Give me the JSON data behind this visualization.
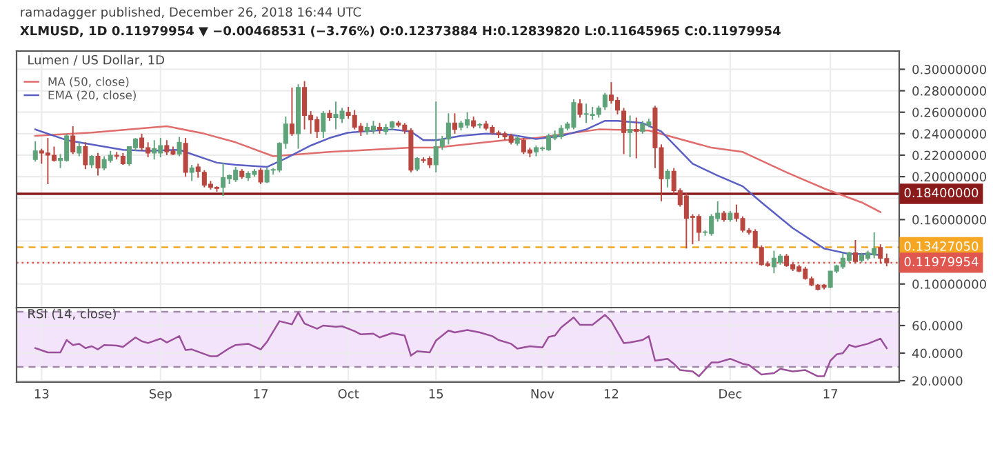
{
  "chart_data": [
    {
      "type": "candlestick",
      "title": "XLMUSD, 1D 0.11979954 ▼ −0.00468531 (−3.76%) O:0.12373884 H:0.12839820 L:0.11645965 C:0.11979954",
      "subtitle": "ramadagger published, December 26, 2018 16:44 UTC",
      "annotations": [
        "Lumen / US Dollar, 1D"
      ],
      "x": [
        "2018-08-12",
        "2018-08-13",
        "2018-08-14",
        "2018-08-15",
        "2018-08-16",
        "2018-08-17",
        "2018-08-18",
        "2018-08-19",
        "2018-08-20",
        "2018-08-21",
        "2018-08-22",
        "2018-08-23",
        "2018-08-24",
        "2018-08-25",
        "2018-08-26",
        "2018-08-27",
        "2018-08-28",
        "2018-08-29",
        "2018-08-30",
        "2018-08-31",
        "2018-09-01",
        "2018-09-02",
        "2018-09-03",
        "2018-09-04",
        "2018-09-05",
        "2018-09-06",
        "2018-09-07",
        "2018-09-08",
        "2018-09-09",
        "2018-09-10",
        "2018-09-11",
        "2018-09-12",
        "2018-09-13",
        "2018-09-14",
        "2018-09-15",
        "2018-09-16",
        "2018-09-17",
        "2018-09-18",
        "2018-09-19",
        "2018-09-20",
        "2018-09-21",
        "2018-09-22",
        "2018-09-23",
        "2018-09-24",
        "2018-09-25",
        "2018-09-26",
        "2018-09-27",
        "2018-09-28",
        "2018-09-29",
        "2018-09-30",
        "2018-10-01",
        "2018-10-02",
        "2018-10-03",
        "2018-10-04",
        "2018-10-05",
        "2018-10-06",
        "2018-10-07",
        "2018-10-08",
        "2018-10-09",
        "2018-10-10",
        "2018-10-11",
        "2018-10-12",
        "2018-10-13",
        "2018-10-14",
        "2018-10-15",
        "2018-10-16",
        "2018-10-17",
        "2018-10-18",
        "2018-10-19",
        "2018-10-20",
        "2018-10-21",
        "2018-10-22",
        "2018-10-23",
        "2018-10-24",
        "2018-10-25",
        "2018-10-26",
        "2018-10-27",
        "2018-10-28",
        "2018-10-29",
        "2018-10-30",
        "2018-10-31",
        "2018-11-01",
        "2018-11-02",
        "2018-11-03",
        "2018-11-04",
        "2018-11-05",
        "2018-11-06",
        "2018-11-07",
        "2018-11-08",
        "2018-11-09",
        "2018-11-10",
        "2018-11-11",
        "2018-11-12",
        "2018-11-13",
        "2018-11-14",
        "2018-11-15",
        "2018-11-16",
        "2018-11-17",
        "2018-11-18",
        "2018-11-19",
        "2018-11-20",
        "2018-11-21",
        "2018-11-22",
        "2018-11-23",
        "2018-11-24",
        "2018-11-25",
        "2018-11-26",
        "2018-11-27",
        "2018-11-28",
        "2018-11-29",
        "2018-11-30",
        "2018-12-01",
        "2018-12-02",
        "2018-12-03",
        "2018-12-04",
        "2018-12-05",
        "2018-12-06",
        "2018-12-07",
        "2018-12-08",
        "2018-12-09",
        "2018-12-10",
        "2018-12-11",
        "2018-12-12",
        "2018-12-13",
        "2018-12-14",
        "2018-12-15",
        "2018-12-16",
        "2018-12-17",
        "2018-12-18",
        "2018-12-19",
        "2018-12-20",
        "2018-12-21",
        "2018-12-22",
        "2018-12-23",
        "2018-12-24",
        "2018-12-25",
        "2018-12-26"
      ],
      "ohlc": [
        [
          0.216,
          0.233,
          0.214,
          0.224
        ],
        [
          0.224,
          0.226,
          0.212,
          0.222
        ],
        [
          0.222,
          0.236,
          0.193,
          0.22
        ],
        [
          0.22,
          0.228,
          0.214,
          0.215
        ],
        [
          0.215,
          0.221,
          0.208,
          0.217
        ],
        [
          0.215,
          0.24,
          0.214,
          0.238
        ],
        [
          0.238,
          0.247,
          0.221,
          0.223
        ],
        [
          0.222,
          0.232,
          0.219,
          0.228
        ],
        [
          0.228,
          0.232,
          0.207,
          0.211
        ],
        [
          0.211,
          0.22,
          0.208,
          0.219
        ],
        [
          0.219,
          0.222,
          0.201,
          0.208
        ],
        [
          0.208,
          0.219,
          0.206,
          0.216
        ],
        [
          0.215,
          0.224,
          0.213,
          0.22
        ],
        [
          0.22,
          0.223,
          0.216,
          0.219
        ],
        [
          0.219,
          0.222,
          0.211,
          0.212
        ],
        [
          0.212,
          0.228,
          0.21,
          0.228
        ],
        [
          0.227,
          0.236,
          0.224,
          0.235
        ],
        [
          0.236,
          0.24,
          0.224,
          0.227
        ],
        [
          0.227,
          0.232,
          0.218,
          0.222
        ],
        [
          0.222,
          0.234,
          0.216,
          0.226
        ],
        [
          0.222,
          0.236,
          0.218,
          0.229
        ],
        [
          0.229,
          0.234,
          0.22,
          0.223
        ],
        [
          0.224,
          0.228,
          0.22,
          0.221
        ],
        [
          0.221,
          0.237,
          0.219,
          0.232
        ],
        [
          0.231,
          0.236,
          0.2,
          0.204
        ],
        [
          0.204,
          0.211,
          0.196,
          0.208
        ],
        [
          0.209,
          0.212,
          0.199,
          0.205
        ],
        [
          0.204,
          0.206,
          0.19,
          0.192
        ],
        [
          0.193,
          0.196,
          0.188,
          0.19
        ],
        [
          0.19,
          0.191,
          0.186,
          0.189
        ],
        [
          0.19,
          0.213,
          0.182,
          0.199
        ],
        [
          0.198,
          0.202,
          0.193,
          0.201
        ],
        [
          0.197,
          0.209,
          0.195,
          0.206
        ],
        [
          0.205,
          0.207,
          0.198,
          0.2
        ],
        [
          0.199,
          0.205,
          0.196,
          0.203
        ],
        [
          0.202,
          0.207,
          0.2,
          0.205
        ],
        [
          0.206,
          0.208,
          0.193,
          0.195
        ],
        [
          0.195,
          0.208,
          0.194,
          0.206
        ],
        [
          0.206,
          0.208,
          0.202,
          0.206
        ],
        [
          0.206,
          0.232,
          0.204,
          0.231
        ],
        [
          0.231,
          0.256,
          0.226,
          0.249
        ],
        [
          0.249,
          0.283,
          0.238,
          0.24
        ],
        [
          0.24,
          0.286,
          0.226,
          0.283
        ],
        [
          0.283,
          0.289,
          0.244,
          0.257
        ],
        [
          0.257,
          0.261,
          0.24,
          0.253
        ],
        [
          0.253,
          0.256,
          0.236,
          0.242
        ],
        [
          0.242,
          0.261,
          0.236,
          0.259
        ],
        [
          0.259,
          0.262,
          0.252,
          0.255
        ],
        [
          0.255,
          0.27,
          0.244,
          0.258
        ],
        [
          0.254,
          0.264,
          0.25,
          0.261
        ],
        [
          0.26,
          0.265,
          0.254,
          0.257
        ],
        [
          0.257,
          0.262,
          0.244,
          0.246
        ],
        [
          0.247,
          0.25,
          0.238,
          0.242
        ],
        [
          0.242,
          0.25,
          0.239,
          0.246
        ],
        [
          0.243,
          0.252,
          0.24,
          0.247
        ],
        [
          0.246,
          0.25,
          0.24,
          0.244
        ],
        [
          0.242,
          0.249,
          0.239,
          0.246
        ],
        [
          0.246,
          0.252,
          0.243,
          0.251
        ],
        [
          0.25,
          0.252,
          0.246,
          0.248
        ],
        [
          0.248,
          0.25,
          0.24,
          0.243
        ],
        [
          0.243,
          0.245,
          0.204,
          0.206
        ],
        [
          0.207,
          0.218,
          0.205,
          0.217
        ],
        [
          0.216,
          0.218,
          0.213,
          0.215
        ],
        [
          0.217,
          0.219,
          0.208,
          0.211
        ],
        [
          0.211,
          0.27,
          0.204,
          0.228
        ],
        [
          0.228,
          0.238,
          0.225,
          0.235
        ],
        [
          0.235,
          0.259,
          0.23,
          0.25
        ],
        [
          0.25,
          0.259,
          0.24,
          0.244
        ],
        [
          0.246,
          0.252,
          0.243,
          0.25
        ],
        [
          0.248,
          0.26,
          0.245,
          0.253
        ],
        [
          0.252,
          0.256,
          0.245,
          0.247
        ],
        [
          0.248,
          0.25,
          0.245,
          0.248
        ],
        [
          0.249,
          0.252,
          0.243,
          0.245
        ],
        [
          0.246,
          0.248,
          0.239,
          0.241
        ],
        [
          0.241,
          0.243,
          0.236,
          0.239
        ],
        [
          0.24,
          0.242,
          0.234,
          0.237
        ],
        [
          0.238,
          0.24,
          0.23,
          0.232
        ],
        [
          0.231,
          0.238,
          0.229,
          0.236
        ],
        [
          0.234,
          0.236,
          0.221,
          0.223
        ],
        [
          0.225,
          0.227,
          0.218,
          0.222
        ],
        [
          0.223,
          0.229,
          0.219,
          0.227
        ],
        [
          0.226,
          0.228,
          0.224,
          0.226
        ],
        [
          0.225,
          0.24,
          0.224,
          0.238
        ],
        [
          0.236,
          0.243,
          0.234,
          0.239
        ],
        [
          0.237,
          0.248,
          0.235,
          0.245
        ],
        [
          0.245,
          0.251,
          0.243,
          0.249
        ],
        [
          0.246,
          0.272,
          0.244,
          0.269
        ],
        [
          0.268,
          0.272,
          0.255,
          0.258
        ],
        [
          0.258,
          0.268,
          0.25,
          0.258
        ],
        [
          0.257,
          0.265,
          0.253,
          0.258
        ],
        [
          0.258,
          0.266,
          0.255,
          0.264
        ],
        [
          0.265,
          0.278,
          0.262,
          0.276
        ],
        [
          0.276,
          0.288,
          0.268,
          0.271
        ],
        [
          0.271,
          0.274,
          0.258,
          0.262
        ],
        [
          0.261,
          0.264,
          0.221,
          0.241
        ],
        [
          0.241,
          0.257,
          0.218,
          0.244
        ],
        [
          0.244,
          0.255,
          0.217,
          0.242
        ],
        [
          0.242,
          0.252,
          0.24,
          0.249
        ],
        [
          0.248,
          0.254,
          0.246,
          0.251
        ],
        [
          0.264,
          0.266,
          0.208,
          0.227
        ],
        [
          0.227,
          0.23,
          0.177,
          0.198
        ],
        [
          0.198,
          0.207,
          0.19,
          0.205
        ],
        [
          0.205,
          0.208,
          0.183,
          0.187
        ],
        [
          0.187,
          0.189,
          0.172,
          0.174
        ],
        [
          0.182,
          0.185,
          0.133,
          0.161
        ],
        [
          0.163,
          0.165,
          0.137,
          0.162
        ],
        [
          0.163,
          0.165,
          0.14,
          0.148
        ],
        [
          0.148,
          0.15,
          0.145,
          0.148
        ],
        [
          0.147,
          0.165,
          0.145,
          0.163
        ],
        [
          0.161,
          0.177,
          0.158,
          0.166
        ],
        [
          0.166,
          0.168,
          0.158,
          0.16
        ],
        [
          0.16,
          0.168,
          0.158,
          0.166
        ],
        [
          0.166,
          0.174,
          0.158,
          0.161
        ],
        [
          0.161,
          0.163,
          0.148,
          0.15
        ],
        [
          0.15,
          0.152,
          0.146,
          0.148
        ],
        [
          0.149,
          0.151,
          0.133,
          0.134
        ],
        [
          0.134,
          0.136,
          0.117,
          0.118
        ],
        [
          0.119,
          0.121,
          0.116,
          0.117
        ],
        [
          0.116,
          0.131,
          0.11,
          0.124
        ],
        [
          0.12,
          0.128,
          0.118,
          0.126
        ],
        [
          0.126,
          0.128,
          0.116,
          0.117
        ],
        [
          0.118,
          0.12,
          0.112,
          0.114
        ],
        [
          0.116,
          0.118,
          0.111,
          0.112
        ],
        [
          0.114,
          0.116,
          0.104,
          0.105
        ],
        [
          0.105,
          0.107,
          0.098,
          0.099
        ],
        [
          0.099,
          0.1,
          0.094,
          0.095
        ],
        [
          0.099,
          0.1,
          0.095,
          0.097
        ],
        [
          0.097,
          0.112,
          0.096,
          0.112
        ],
        [
          0.112,
          0.118,
          0.11,
          0.117
        ],
        [
          0.116,
          0.129,
          0.114,
          0.124
        ],
        [
          0.122,
          0.13,
          0.12,
          0.129
        ],
        [
          0.129,
          0.141,
          0.119,
          0.121
        ],
        [
          0.122,
          0.129,
          0.12,
          0.127
        ],
        [
          0.124,
          0.131,
          0.122,
          0.129
        ],
        [
          0.127,
          0.148,
          0.124,
          0.133
        ],
        [
          0.134,
          0.137,
          0.119,
          0.124
        ],
        [
          0.12373884,
          0.1283982,
          0.11645965,
          0.11979954
        ]
      ],
      "series": [
        {
          "name": "MA (50, close)",
          "type": "line",
          "color": "#e06c6c",
          "x": [
            "2018-08-12",
            "2018-08-21",
            "2018-09-02",
            "2018-09-08",
            "2018-09-13",
            "2018-09-19",
            "2018-09-28",
            "2018-10-11",
            "2018-10-15",
            "2018-10-26",
            "2018-10-31",
            "2018-11-10",
            "2018-11-18",
            "2018-11-28",
            "2018-12-03",
            "2018-12-10",
            "2018-12-16",
            "2018-12-22",
            "2018-12-25"
          ],
          "values": [
            0.238,
            0.241,
            0.247,
            0.24,
            0.232,
            0.219,
            0.223,
            0.227,
            0.227,
            0.234,
            0.236,
            0.244,
            0.243,
            0.227,
            0.223,
            0.204,
            0.189,
            0.176,
            0.167
          ]
        },
        {
          "name": "EMA (20, close)",
          "type": "line",
          "color": "#5a5fc4",
          "x": [
            "2018-08-12",
            "2018-08-17",
            "2018-08-26",
            "2018-08-30",
            "2018-09-04",
            "2018-09-10",
            "2018-09-13",
            "2018-09-18",
            "2018-09-21",
            "2018-09-25",
            "2018-09-28",
            "2018-10-01",
            "2018-10-08",
            "2018-10-11",
            "2018-10-13",
            "2018-10-15",
            "2018-10-19",
            "2018-10-23",
            "2018-10-27",
            "2018-10-31",
            "2018-11-04",
            "2018-11-08",
            "2018-11-11",
            "2018-11-13",
            "2018-11-17",
            "2018-11-20",
            "2018-11-25",
            "2018-11-29",
            "2018-12-03",
            "2018-12-06",
            "2018-12-11",
            "2018-12-16",
            "2018-12-20",
            "2018-12-23",
            "2018-12-25"
          ],
          "values": [
            0.244,
            0.234,
            0.225,
            0.224,
            0.225,
            0.213,
            0.211,
            0.209,
            0.217,
            0.229,
            0.236,
            0.241,
            0.244,
            0.242,
            0.234,
            0.234,
            0.238,
            0.24,
            0.239,
            0.235,
            0.238,
            0.244,
            0.252,
            0.252,
            0.25,
            0.242,
            0.212,
            0.201,
            0.191,
            0.176,
            0.152,
            0.133,
            0.128,
            0.128,
            0.127
          ]
        }
      ],
      "legend": "top left",
      "grid": true,
      "tick_labels": "y",
      "xlim": [
        "2018-08-09",
        "2018-12-28"
      ],
      "xticks": [
        {
          "value": "2018-08-13",
          "label": null
        },
        {
          "value": "2018-09-01",
          "label": null
        },
        {
          "value": "2018-09-17",
          "label": null
        },
        {
          "value": "2018-10-01",
          "label": null
        },
        {
          "value": "2018-10-15",
          "label": null
        },
        {
          "value": "2018-11-01",
          "label": null
        },
        {
          "value": "2018-11-12",
          "label": null
        },
        {
          "value": "2018-12-01",
          "label": null
        },
        {
          "value": "2018-12-17",
          "label": null
        }
      ],
      "ylim": [
        0.078,
        0.317
      ],
      "yticks": [
        {
          "value": 0.1,
          "label": "0.10000000"
        },
        {
          "value": 0.12,
          "label": null
        },
        {
          "value": 0.14,
          "label": null
        },
        {
          "value": 0.16,
          "label": "0.16000000"
        },
        {
          "value": 0.18,
          "label": null
        },
        {
          "value": 0.2,
          "label": "0.20000000"
        },
        {
          "value": 0.22,
          "label": "0.22000000"
        },
        {
          "value": 0.24,
          "label": "0.24000000"
        },
        {
          "value": 0.26,
          "label": "0.26000000"
        },
        {
          "value": 0.28,
          "label": "0.28000000"
        },
        {
          "value": 0.3,
          "label": "0.30000000"
        }
      ],
      "ref_lines": [
        {
          "axis": "y",
          "value": 0.184,
          "label": "0.18400000",
          "color": "#8b1a1a",
          "line_style": "solid"
        },
        {
          "axis": "y",
          "value": 0.1342705,
          "label": "0.13427050",
          "color": "#f5a623",
          "line_style": "dashed"
        },
        {
          "axis": "y",
          "value": 0.11979954,
          "label": "0.11979954",
          "color": "#e0574f",
          "line_style": "dotted"
        }
      ]
    },
    {
      "type": "line",
      "annotations": [
        "RSI (14, close)"
      ],
      "series": [
        {
          "color": "#9b4f9b",
          "x": [
            "2018-08-12",
            "2018-08-14",
            "2018-08-16",
            "2018-08-17",
            "2018-08-18",
            "2018-08-19",
            "2018-08-20",
            "2018-08-21",
            "2018-08-22",
            "2018-08-23",
            "2018-08-25",
            "2018-08-26",
            "2018-08-28",
            "2018-08-29",
            "2018-08-30",
            "2018-09-01",
            "2018-09-02",
            "2018-09-04",
            "2018-09-05",
            "2018-09-06",
            "2018-09-09",
            "2018-09-10",
            "2018-09-12",
            "2018-09-13",
            "2018-09-15",
            "2018-09-17",
            "2018-09-18",
            "2018-09-20",
            "2018-09-22",
            "2018-09-23",
            "2018-09-24",
            "2018-09-26",
            "2018-09-27",
            "2018-09-29",
            "2018-09-30",
            "2018-10-02",
            "2018-10-03",
            "2018-10-05",
            "2018-10-06",
            "2018-10-08",
            "2018-10-10",
            "2018-10-11",
            "2018-10-12",
            "2018-10-14",
            "2018-10-15",
            "2018-10-17",
            "2018-10-18",
            "2018-10-20",
            "2018-10-22",
            "2018-10-24",
            "2018-10-25",
            "2018-10-27",
            "2018-10-28",
            "2018-10-30",
            "2018-11-01",
            "2018-11-02",
            "2018-11-03",
            "2018-11-04",
            "2018-11-06",
            "2018-11-07",
            "2018-11-09",
            "2018-11-10",
            "2018-11-11",
            "2018-11-12",
            "2018-11-14",
            "2018-11-15",
            "2018-11-17",
            "2018-11-18",
            "2018-11-19",
            "2018-11-21",
            "2018-11-22",
            "2018-11-23",
            "2018-11-25",
            "2018-11-26",
            "2018-11-28",
            "2018-11-29",
            "2018-12-01",
            "2018-12-03",
            "2018-12-04",
            "2018-12-06",
            "2018-12-08",
            "2018-12-09",
            "2018-12-11",
            "2018-12-13",
            "2018-12-15",
            "2018-12-16",
            "2018-12-17",
            "2018-12-18",
            "2018-12-19",
            "2018-12-20",
            "2018-12-21",
            "2018-12-23",
            "2018-12-25",
            "2018-12-26"
          ],
          "values": [
            43.6,
            40.5,
            40.5,
            49.5,
            45.9,
            46.8,
            43.6,
            45,
            42.7,
            45.9,
            45.5,
            44.5,
            51.4,
            48.6,
            47.3,
            50.5,
            47.7,
            52.3,
            42.3,
            42.7,
            37.7,
            37.7,
            43.6,
            45.9,
            46.8,
            42.7,
            48.2,
            63.2,
            60.9,
            69.5,
            61.4,
            57.7,
            60,
            59.1,
            59.5,
            55.9,
            53.6,
            54.1,
            51.4,
            54.5,
            52.7,
            38.2,
            41.4,
            40.5,
            49.1,
            56.4,
            55,
            56.8,
            55,
            52.3,
            49.5,
            46.8,
            43.2,
            45,
            44.1,
            51.8,
            52.7,
            58.6,
            65.9,
            60.5,
            60.5,
            64.1,
            67.7,
            63.2,
            47.3,
            47.7,
            49.5,
            52.3,
            34.5,
            35.9,
            32.3,
            27.7,
            26.8,
            23.2,
            33.2,
            33.2,
            35.9,
            32.3,
            31.4,
            24.5,
            25.5,
            28.6,
            26.8,
            27.7,
            23.2,
            23.2,
            34.5,
            39.1,
            40,
            45.9,
            44.5,
            46.8,
            50.5,
            43.6
          ]
        }
      ],
      "grid": true,
      "xlim": [
        "2018-08-09",
        "2018-12-28"
      ],
      "xticks": [
        {
          "value": "2018-08-13",
          "label": "13"
        },
        {
          "value": "2018-09-01",
          "label": "Sep"
        },
        {
          "value": "2018-09-17",
          "label": "17"
        },
        {
          "value": "2018-10-01",
          "label": "Oct"
        },
        {
          "value": "2018-10-15",
          "label": "15"
        },
        {
          "value": "2018-11-01",
          "label": "Nov"
        },
        {
          "value": "2018-11-12",
          "label": "12"
        },
        {
          "value": "2018-12-01",
          "label": "Dec"
        },
        {
          "value": "2018-12-17",
          "label": "17"
        }
      ],
      "ylim": [
        19,
        73
      ],
      "yticks": [
        {
          "value": 20,
          "label": "20.0000"
        },
        {
          "value": 40,
          "label": "40.0000"
        },
        {
          "value": 60,
          "label": "60.0000"
        }
      ],
      "bands": [
        {
          "axis": "y",
          "from": 30,
          "to": 70,
          "color": "#f3e3fb"
        }
      ],
      "ref_lines": [
        {
          "axis": "y",
          "value": 70,
          "color": "#a08aa8",
          "line_style": "dashed"
        },
        {
          "axis": "y",
          "value": 30,
          "color": "#a08aa8",
          "line_style": "dashed"
        }
      ]
    }
  ]
}
